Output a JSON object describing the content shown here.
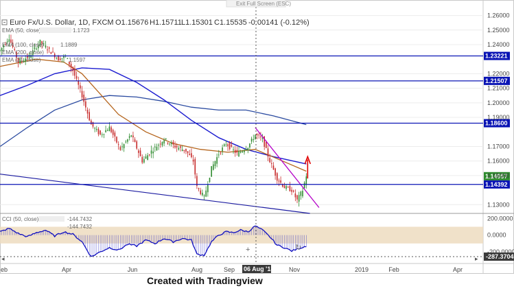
{
  "header": {
    "symbol_title": "Euro Fx/U.S. Dollar, 1D, FXCM",
    "open": "O1.15676",
    "high": "H1.15711",
    "low": "L1.15301",
    "close": "C1.15535",
    "change": "-0.00141 (-0.12%)",
    "exit_fullscreen": "Exit Full Screen (ESC)"
  },
  "indicators": {
    "ema50": "EMA (50, close)",
    "ema50_value": "1.1723",
    "ema100": "EMA (100, close)",
    "ema200": "EMA (200, close)",
    "ema200_value": "1.1889",
    "ema21": "EMA (21, close)",
    "ema21_value": "1.1597",
    "cci": "CCI (50, close)",
    "cci_value": "-144.7432",
    "cci_value2": "-144.7432"
  },
  "credit": "Created with Tradingview",
  "colors": {
    "candle_up": "#2e8b2e",
    "candle_down": "#c62828",
    "hline": "#0a14b4",
    "ema_orange": "#b5651d",
    "ema_blue_dark": "#1a1ad0",
    "ema_blue_light": "#2a4aa0",
    "channel": "#1a1aa0",
    "trend_purple": "#b400c8",
    "arrow_red": "#e00000",
    "cci_line": "#1010c0",
    "cci_band": "#eddcc0",
    "price_tag_bg": "#0a14b4",
    "current_tag_bg": "#2e8b2e"
  },
  "cursor": {
    "date_label": "06 Aug '18",
    "cci_readout": "-287.3704"
  },
  "chart_data": {
    "type": "candlestick",
    "title": "Euro Fx/U.S. Dollar, 1D, FXCM",
    "price_axis": {
      "ylim": [
        1.124,
        1.265
      ],
      "ticks": [
        "1.26000",
        "1.25000",
        "1.24000",
        "1.22000",
        "1.21000",
        "1.20000",
        "1.19000",
        "1.17000",
        "1.16000",
        "1.15000",
        "1.13000"
      ]
    },
    "horizontal_levels": [
      1.23221,
      1.21507,
      1.186,
      1.14392
    ],
    "level_labels": [
      "1.23221",
      "1.21507",
      "1.18600",
      "1.14392"
    ],
    "current_price": 1.14957,
    "current_price_label": "1.14957",
    "x_labels": [
      "eb",
      "Apr",
      "Jun",
      "Aug",
      "Sep",
      "Nov",
      "2019",
      "Feb",
      "Apr"
    ],
    "price_path": [
      [
        0,
        1.236
      ],
      [
        5,
        1.245
      ],
      [
        10,
        1.228
      ],
      [
        16,
        1.232
      ],
      [
        22,
        1.242
      ],
      [
        28,
        1.235
      ],
      [
        32,
        1.23
      ],
      [
        36,
        1.232
      ],
      [
        40,
        1.222
      ],
      [
        45,
        1.205
      ],
      [
        50,
        1.185
      ],
      [
        55,
        1.178
      ],
      [
        60,
        1.183
      ],
      [
        66,
        1.168
      ],
      [
        72,
        1.178
      ],
      [
        78,
        1.16
      ],
      [
        84,
        1.168
      ],
      [
        90,
        1.175
      ],
      [
        96,
        1.17
      ],
      [
        102,
        1.167
      ],
      [
        106,
        1.16
      ],
      [
        108,
        1.142
      ],
      [
        112,
        1.135
      ],
      [
        116,
        1.155
      ],
      [
        120,
        1.165
      ],
      [
        124,
        1.172
      ],
      [
        130,
        1.165
      ],
      [
        136,
        1.17
      ],
      [
        140,
        1.178
      ],
      [
        144,
        1.175
      ],
      [
        148,
        1.16
      ],
      [
        152,
        1.148
      ],
      [
        156,
        1.142
      ],
      [
        160,
        1.14
      ],
      [
        163,
        1.133
      ],
      [
        166,
        1.14
      ],
      [
        168,
        1.15
      ]
    ],
    "ema_orange": [
      [
        0,
        1.225
      ],
      [
        20,
        1.23
      ],
      [
        35,
        1.228
      ],
      [
        45,
        1.22
      ],
      [
        55,
        1.206
      ],
      [
        65,
        1.192
      ],
      [
        80,
        1.18
      ],
      [
        95,
        1.172
      ],
      [
        110,
        1.168
      ],
      [
        125,
        1.166
      ],
      [
        140,
        1.168
      ],
      [
        155,
        1.16
      ],
      [
        168,
        1.153
      ]
    ],
    "ema_blue_dark": [
      [
        0,
        1.205
      ],
      [
        15,
        1.212
      ],
      [
        30,
        1.22
      ],
      [
        45,
        1.224
      ],
      [
        60,
        1.223
      ],
      [
        75,
        1.214
      ],
      [
        90,
        1.202
      ],
      [
        105,
        1.188
      ],
      [
        120,
        1.176
      ],
      [
        135,
        1.168
      ],
      [
        150,
        1.163
      ],
      [
        168,
        1.158
      ]
    ],
    "ema_blue_light": [
      [
        0,
        1.17
      ],
      [
        15,
        1.183
      ],
      [
        30,
        1.195
      ],
      [
        45,
        1.202
      ],
      [
        60,
        1.205
      ],
      [
        75,
        1.204
      ],
      [
        90,
        1.201
      ],
      [
        105,
        1.197
      ],
      [
        120,
        1.195
      ],
      [
        135,
        1.195
      ],
      [
        150,
        1.191
      ],
      [
        168,
        1.185
      ]
    ],
    "channel_line": [
      [
        0,
        1.151
      ],
      [
        170,
        1.124
      ]
    ],
    "purple_trend": [
      [
        140,
        1.183
      ],
      [
        175,
        1.128
      ]
    ],
    "cci": {
      "axis_ticks": [
        "200.0000",
        "0.0000",
        "-200.0000"
      ],
      "ylim": [
        -340,
        260
      ],
      "band": [
        -100,
        100
      ],
      "values": [
        [
          0,
          40
        ],
        [
          5,
          80
        ],
        [
          10,
          20
        ],
        [
          15,
          -20
        ],
        [
          20,
          30
        ],
        [
          25,
          60
        ],
        [
          30,
          -10
        ],
        [
          35,
          40
        ],
        [
          40,
          10
        ],
        [
          45,
          -80
        ],
        [
          50,
          -260
        ],
        [
          55,
          -200
        ],
        [
          60,
          -150
        ],
        [
          65,
          -180
        ],
        [
          70,
          -110
        ],
        [
          75,
          -130
        ],
        [
          80,
          -60
        ],
        [
          85,
          -100
        ],
        [
          90,
          -40
        ],
        [
          95,
          -80
        ],
        [
          100,
          -40
        ],
        [
          105,
          -60
        ],
        [
          108,
          -230
        ],
        [
          112,
          -240
        ],
        [
          116,
          -80
        ],
        [
          120,
          0
        ],
        [
          124,
          40
        ],
        [
          128,
          30
        ],
        [
          132,
          60
        ],
        [
          136,
          40
        ],
        [
          140,
          110
        ],
        [
          144,
          60
        ],
        [
          148,
          -20
        ],
        [
          152,
          -120
        ],
        [
          156,
          -150
        ],
        [
          160,
          -190
        ],
        [
          164,
          -160
        ],
        [
          168,
          -130
        ]
      ]
    },
    "xlim": [
      0,
      265
    ]
  }
}
